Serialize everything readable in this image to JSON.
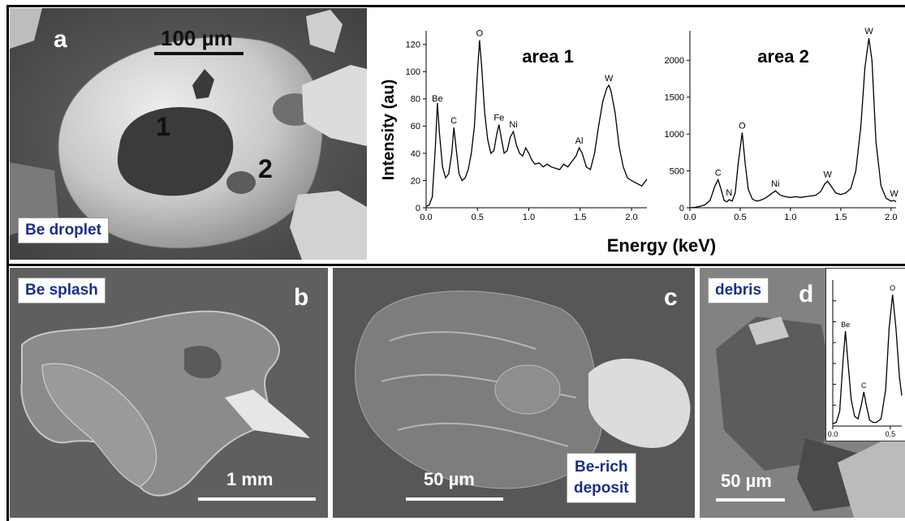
{
  "panel_a": {
    "letter": "a",
    "scale_label": "100 µm",
    "area_marker_1": "1",
    "area_marker_2": "2",
    "tag": "Be droplet"
  },
  "panel_b": {
    "letter": "b",
    "tag": "Be splash",
    "scale_label": "1 mm"
  },
  "panel_c": {
    "letter": "c",
    "tag_line1": "Be-rich",
    "tag_line2": "deposit",
    "scale_label": "50 µm"
  },
  "panel_d": {
    "letter": "d",
    "tag": "debris",
    "scale_label": "50 µm"
  },
  "shared_xlabel": "Energy (keV)",
  "chart_data": [
    {
      "type": "line",
      "title": "area 1",
      "ylabel": "Intensity (au)",
      "xlim": [
        0,
        2.15
      ],
      "ylim": [
        0,
        130
      ],
      "xticks": [
        "0.0",
        "0.5",
        "1.0",
        "1.5",
        "2.0"
      ],
      "yticks": [
        "0",
        "20",
        "40",
        "60",
        "80",
        "100",
        "120"
      ],
      "peaks": [
        {
          "label": "Be",
          "x": 0.11,
          "y": 75
        },
        {
          "label": "C",
          "x": 0.27,
          "y": 59
        },
        {
          "label": "O",
          "x": 0.52,
          "y": 123
        },
        {
          "label": "Fe",
          "x": 0.71,
          "y": 61
        },
        {
          "label": "Ni",
          "x": 0.85,
          "y": 56
        },
        {
          "label": "Al",
          "x": 1.49,
          "y": 44
        },
        {
          "label": "W",
          "x": 1.78,
          "y": 90
        }
      ],
      "series": [
        {
          "points": [
            [
              0.0,
              1
            ],
            [
              0.03,
              2
            ],
            [
              0.06,
              8
            ],
            [
              0.09,
              45
            ],
            [
              0.11,
              77
            ],
            [
              0.13,
              55
            ],
            [
              0.16,
              30
            ],
            [
              0.19,
              22
            ],
            [
              0.22,
              25
            ],
            [
              0.25,
              40
            ],
            [
              0.27,
              59
            ],
            [
              0.29,
              45
            ],
            [
              0.32,
              25
            ],
            [
              0.35,
              20
            ],
            [
              0.38,
              22
            ],
            [
              0.41,
              28
            ],
            [
              0.44,
              40
            ],
            [
              0.47,
              60
            ],
            [
              0.5,
              100
            ],
            [
              0.52,
              123
            ],
            [
              0.54,
              105
            ],
            [
              0.57,
              70
            ],
            [
              0.6,
              50
            ],
            [
              0.63,
              40
            ],
            [
              0.66,
              42
            ],
            [
              0.69,
              55
            ],
            [
              0.71,
              61
            ],
            [
              0.73,
              52
            ],
            [
              0.76,
              40
            ],
            [
              0.79,
              42
            ],
            [
              0.82,
              52
            ],
            [
              0.85,
              56
            ],
            [
              0.88,
              46
            ],
            [
              0.91,
              40
            ],
            [
              0.94,
              38
            ],
            [
              0.97,
              44
            ],
            [
              1.0,
              40
            ],
            [
              1.03,
              35
            ],
            [
              1.06,
              32
            ],
            [
              1.1,
              33
            ],
            [
              1.14,
              30
            ],
            [
              1.18,
              32
            ],
            [
              1.22,
              30
            ],
            [
              1.26,
              29
            ],
            [
              1.3,
              28
            ],
            [
              1.34,
              32
            ],
            [
              1.38,
              30
            ],
            [
              1.42,
              34
            ],
            [
              1.46,
              38
            ],
            [
              1.49,
              44
            ],
            [
              1.52,
              40
            ],
            [
              1.56,
              30
            ],
            [
              1.6,
              28
            ],
            [
              1.64,
              40
            ],
            [
              1.68,
              60
            ],
            [
              1.72,
              78
            ],
            [
              1.76,
              88
            ],
            [
              1.78,
              90
            ],
            [
              1.8,
              86
            ],
            [
              1.84,
              70
            ],
            [
              1.88,
              45
            ],
            [
              1.92,
              30
            ],
            [
              1.96,
              22
            ],
            [
              2.0,
              20
            ],
            [
              2.05,
              18
            ],
            [
              2.1,
              16
            ],
            [
              2.15,
              21
            ]
          ]
        }
      ]
    },
    {
      "type": "line",
      "title": "area 2",
      "ylabel": "",
      "xlim": [
        0,
        2.05
      ],
      "ylim": [
        0,
        2400
      ],
      "xticks": [
        "0.0",
        "0.5",
        "1.0",
        "1.5",
        "2.0"
      ],
      "yticks": [
        "0",
        "500",
        "1000",
        "1500",
        "2000"
      ],
      "peaks": [
        {
          "label": "C",
          "x": 0.28,
          "y": 380
        },
        {
          "label": "N",
          "x": 0.39,
          "y": 110
        },
        {
          "label": "O",
          "x": 0.52,
          "y": 1020
        },
        {
          "label": "Ni",
          "x": 0.85,
          "y": 230
        },
        {
          "label": "W",
          "x": 1.37,
          "y": 360
        },
        {
          "label": "W",
          "x": 1.78,
          "y": 2300
        },
        {
          "label": "W",
          "x": 2.03,
          "y": 100
        }
      ],
      "series": [
        {
          "points": [
            [
              0.0,
              0
            ],
            [
              0.05,
              5
            ],
            [
              0.1,
              20
            ],
            [
              0.15,
              40
            ],
            [
              0.2,
              100
            ],
            [
              0.25,
              300
            ],
            [
              0.28,
              380
            ],
            [
              0.31,
              250
            ],
            [
              0.34,
              100
            ],
            [
              0.37,
              80
            ],
            [
              0.39,
              110
            ],
            [
              0.42,
              90
            ],
            [
              0.45,
              200
            ],
            [
              0.48,
              600
            ],
            [
              0.52,
              1020
            ],
            [
              0.55,
              600
            ],
            [
              0.58,
              250
            ],
            [
              0.62,
              120
            ],
            [
              0.66,
              90
            ],
            [
              0.7,
              100
            ],
            [
              0.75,
              130
            ],
            [
              0.8,
              180
            ],
            [
              0.85,
              230
            ],
            [
              0.9,
              170
            ],
            [
              0.95,
              150
            ],
            [
              1.0,
              140
            ],
            [
              1.05,
              150
            ],
            [
              1.1,
              140
            ],
            [
              1.15,
              150
            ],
            [
              1.2,
              160
            ],
            [
              1.25,
              170
            ],
            [
              1.3,
              220
            ],
            [
              1.34,
              320
            ],
            [
              1.37,
              360
            ],
            [
              1.4,
              300
            ],
            [
              1.45,
              200
            ],
            [
              1.5,
              180
            ],
            [
              1.55,
              200
            ],
            [
              1.6,
              260
            ],
            [
              1.65,
              500
            ],
            [
              1.7,
              1100
            ],
            [
              1.74,
              1900
            ],
            [
              1.78,
              2300
            ],
            [
              1.81,
              2000
            ],
            [
              1.85,
              900
            ],
            [
              1.9,
              300
            ],
            [
              1.95,
              130
            ],
            [
              2.0,
              90
            ],
            [
              2.03,
              100
            ],
            [
              2.05,
              80
            ]
          ]
        }
      ]
    },
    {
      "type": "line",
      "title": "",
      "ylabel": "",
      "xlim": [
        0,
        0.6
      ],
      "ylim": [
        0,
        120
      ],
      "xticks": [
        "0.0",
        "0.5"
      ],
      "yticks": [],
      "peaks": [
        {
          "label": "Be",
          "x": 0.11,
          "y": 78
        },
        {
          "label": "C",
          "x": 0.27,
          "y": 28
        },
        {
          "label": "O",
          "x": 0.52,
          "y": 108
        }
      ],
      "series": [
        {
          "points": [
            [
              0.0,
              2
            ],
            [
              0.03,
              3
            ],
            [
              0.06,
              12
            ],
            [
              0.09,
              55
            ],
            [
              0.11,
              78
            ],
            [
              0.13,
              55
            ],
            [
              0.16,
              22
            ],
            [
              0.19,
              8
            ],
            [
              0.22,
              6
            ],
            [
              0.25,
              18
            ],
            [
              0.27,
              28
            ],
            [
              0.29,
              18
            ],
            [
              0.32,
              5
            ],
            [
              0.35,
              3
            ],
            [
              0.38,
              3
            ],
            [
              0.42,
              6
            ],
            [
              0.46,
              30
            ],
            [
              0.49,
              80
            ],
            [
              0.52,
              108
            ],
            [
              0.55,
              80
            ],
            [
              0.58,
              40
            ],
            [
              0.6,
              25
            ]
          ]
        }
      ]
    }
  ]
}
